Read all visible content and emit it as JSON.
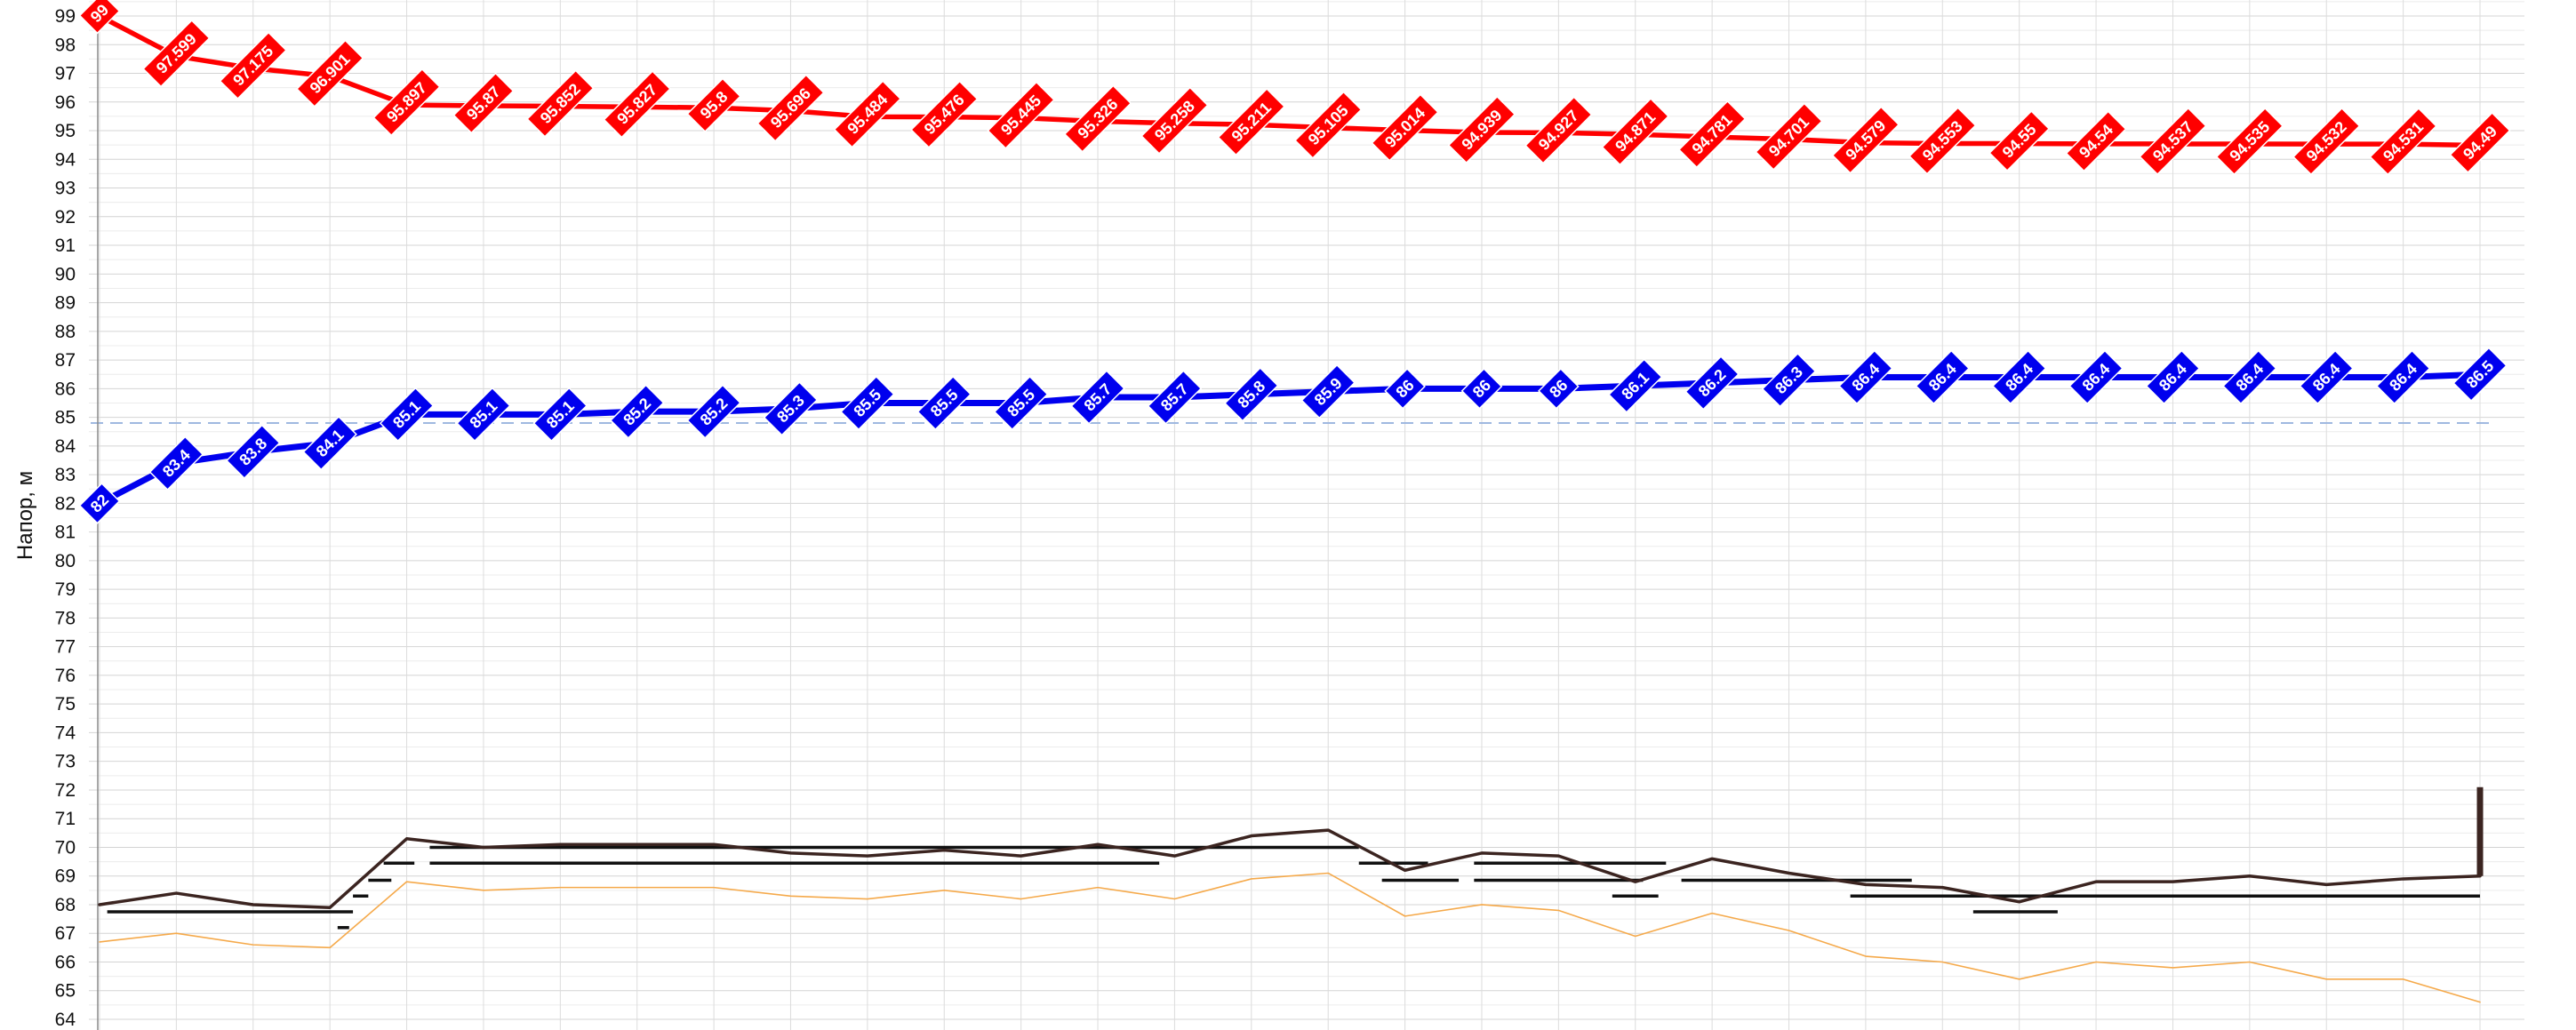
{
  "chart_data": {
    "type": "line",
    "ylabel": "Напор, м",
    "ylim": [
      64,
      99
    ],
    "yticks": [
      64,
      65,
      66,
      67,
      68,
      69,
      70,
      71,
      72,
      73,
      74,
      75,
      76,
      77,
      78,
      79,
      80,
      81,
      82,
      83,
      84,
      85,
      86,
      87,
      88,
      89,
      90,
      91,
      92,
      93,
      94,
      95,
      96,
      97,
      98,
      99
    ],
    "grid": true,
    "legend": "none",
    "x": [
      0,
      1,
      2,
      3,
      4,
      5,
      6,
      7,
      8,
      9,
      10,
      11,
      12,
      13,
      14,
      15,
      16,
      17,
      18,
      19,
      20,
      21,
      22,
      23,
      24,
      25,
      26,
      27,
      28,
      29,
      30,
      31
    ],
    "series": [
      {
        "color": "#ff0000",
        "values": [
          99,
          97.599,
          97.175,
          96.901,
          95.897,
          95.87,
          95.852,
          95.827,
          95.8,
          95.696,
          95.484,
          95.476,
          95.445,
          95.326,
          95.258,
          95.211,
          95.105,
          95.014,
          94.939,
          94.927,
          94.871,
          94.781,
          94.701,
          94.579,
          94.553,
          94.55,
          94.54,
          94.537,
          94.535,
          94.532,
          94.531,
          94.49
        ],
        "labels": [
          "99",
          "97.599",
          "97.175",
          "96.901",
          "95.897",
          "95.87",
          "95.852",
          "95.827",
          "95.8",
          "95.696",
          "95.484",
          "95.476",
          "95.445",
          "95.326",
          "95.258",
          "95.211",
          "95.105",
          "95.014",
          "94.939",
          "94.927",
          "94.871",
          "94.781",
          "94.701",
          "94.579",
          "94.553",
          "94.55",
          "94.54",
          "94.537",
          "94.535",
          "94.532",
          "94.531",
          "94.49"
        ]
      },
      {
        "color": "#0000ee",
        "values": [
          82,
          83.4,
          83.8,
          84.1,
          85.1,
          85.1,
          85.1,
          85.2,
          85.2,
          85.3,
          85.5,
          85.5,
          85.5,
          85.7,
          85.7,
          85.8,
          85.9,
          86,
          86,
          86,
          86.1,
          86.2,
          86.3,
          86.4,
          86.4,
          86.4,
          86.4,
          86.4,
          86.4,
          86.4,
          86.4,
          86.5
        ],
        "labels": [
          "82",
          "83.4",
          "83.8",
          "84.1",
          "85.1",
          "85.1",
          "85.1",
          "85.2",
          "85.2",
          "85.3",
          "85.5",
          "85.5",
          "85.5",
          "85.7",
          "85.7",
          "85.8",
          "85.9",
          "86",
          "86",
          "86",
          "86.1",
          "86.2",
          "86.3",
          "86.4",
          "86.4",
          "86.4",
          "86.4",
          "86.4",
          "86.4",
          "86.4",
          "86.4",
          "86.5"
        ]
      },
      {
        "color": "#3b2420",
        "values": [
          68,
          68.4,
          68,
          67.9,
          70.3,
          70,
          70.1,
          70.1,
          70.1,
          69.8,
          69.7,
          69.9,
          69.7,
          70.1,
          69.7,
          70.4,
          70.6,
          69.2,
          69.8,
          69.7,
          68.8,
          69.6,
          69.1,
          68.7,
          68.6,
          68.1,
          68.8,
          68.8,
          69,
          68.7,
          68.9,
          69
        ]
      },
      {
        "color": "#f5a94a",
        "values": [
          66.7,
          67,
          66.6,
          66.5,
          68.8,
          68.5,
          68.6,
          68.6,
          68.6,
          68.3,
          68.2,
          68.5,
          68.2,
          68.6,
          68.2,
          68.9,
          69.1,
          67.6,
          68,
          67.8,
          66.9,
          67.7,
          67.1,
          66.2,
          66,
          65.4,
          66,
          65.8,
          66,
          65.4,
          65.4,
          64.6
        ]
      }
    ],
    "reference_line": {
      "value": 84.8,
      "color": "#9fb8e0"
    },
    "segments": {
      "color": "#111111",
      "items": [
        {
          "x0": 0.1,
          "x1": 3.3,
          "y": 67.75
        },
        {
          "x0": 3.1,
          "x1": 3.25,
          "y": 67.2
        },
        {
          "x0": 3.3,
          "x1": 3.5,
          "y": 68.3
        },
        {
          "x0": 3.5,
          "x1": 3.8,
          "y": 68.85
        },
        {
          "x0": 3.7,
          "x1": 4.1,
          "y": 69.45
        },
        {
          "x0": 4.3,
          "x1": 13.8,
          "y": 69.45
        },
        {
          "x0": 4.3,
          "x1": 16.4,
          "y": 70.0
        },
        {
          "x0": 16.4,
          "x1": 17.3,
          "y": 69.45
        },
        {
          "x0": 16.7,
          "x1": 17.7,
          "y": 68.85
        },
        {
          "x0": 17.9,
          "x1": 20.4,
          "y": 69.45
        },
        {
          "x0": 17.9,
          "x1": 20.1,
          "y": 68.85
        },
        {
          "x0": 19.7,
          "x1": 20.3,
          "y": 68.3
        },
        {
          "x0": 20.6,
          "x1": 23.6,
          "y": 68.85
        },
        {
          "x0": 22.8,
          "x1": 31.0,
          "y": 68.3
        },
        {
          "x0": 24.4,
          "x1": 25.5,
          "y": 67.75
        }
      ]
    },
    "end_spike": {
      "x": 31,
      "from": 69,
      "to": 72.1,
      "color": "#3b2420"
    }
  }
}
